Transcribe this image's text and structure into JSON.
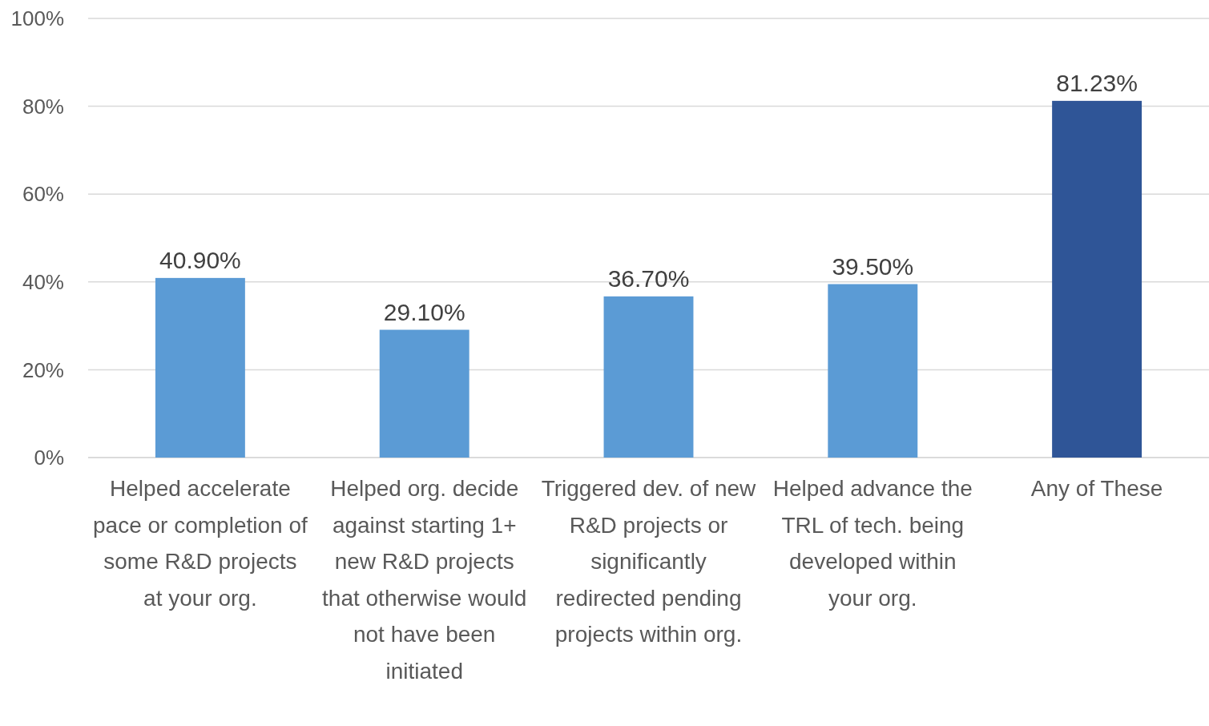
{
  "chart_data": {
    "type": "bar",
    "categories": [
      "Helped accelerate pace or completion of some R&D projects at your org.",
      "Helped org. decide against starting 1+ new R&D projects that otherwise would not have been initiated",
      "Triggered dev. of new R&D projects or significantly redirected pending projects within org.",
      "Helped advance the TRL of tech. being developed within your org.",
      "Any of These"
    ],
    "values": [
      40.9,
      29.1,
      36.7,
      39.5,
      81.23
    ],
    "value_labels": [
      "40.90%",
      "29.10%",
      "36.70%",
      "39.50%",
      "81.23%"
    ],
    "colors": [
      "#5b9bd5",
      "#5b9bd5",
      "#5b9bd5",
      "#5b9bd5",
      "#2f5597"
    ],
    "ylim": [
      0,
      100
    ],
    "yticks": [
      {
        "value": 0,
        "label": "0%"
      },
      {
        "value": 20,
        "label": "20%"
      },
      {
        "value": 40,
        "label": "40%"
      },
      {
        "value": 60,
        "label": "60%"
      },
      {
        "value": 80,
        "label": "80%"
      },
      {
        "value": 100,
        "label": "100%"
      }
    ],
    "grid": "y"
  }
}
